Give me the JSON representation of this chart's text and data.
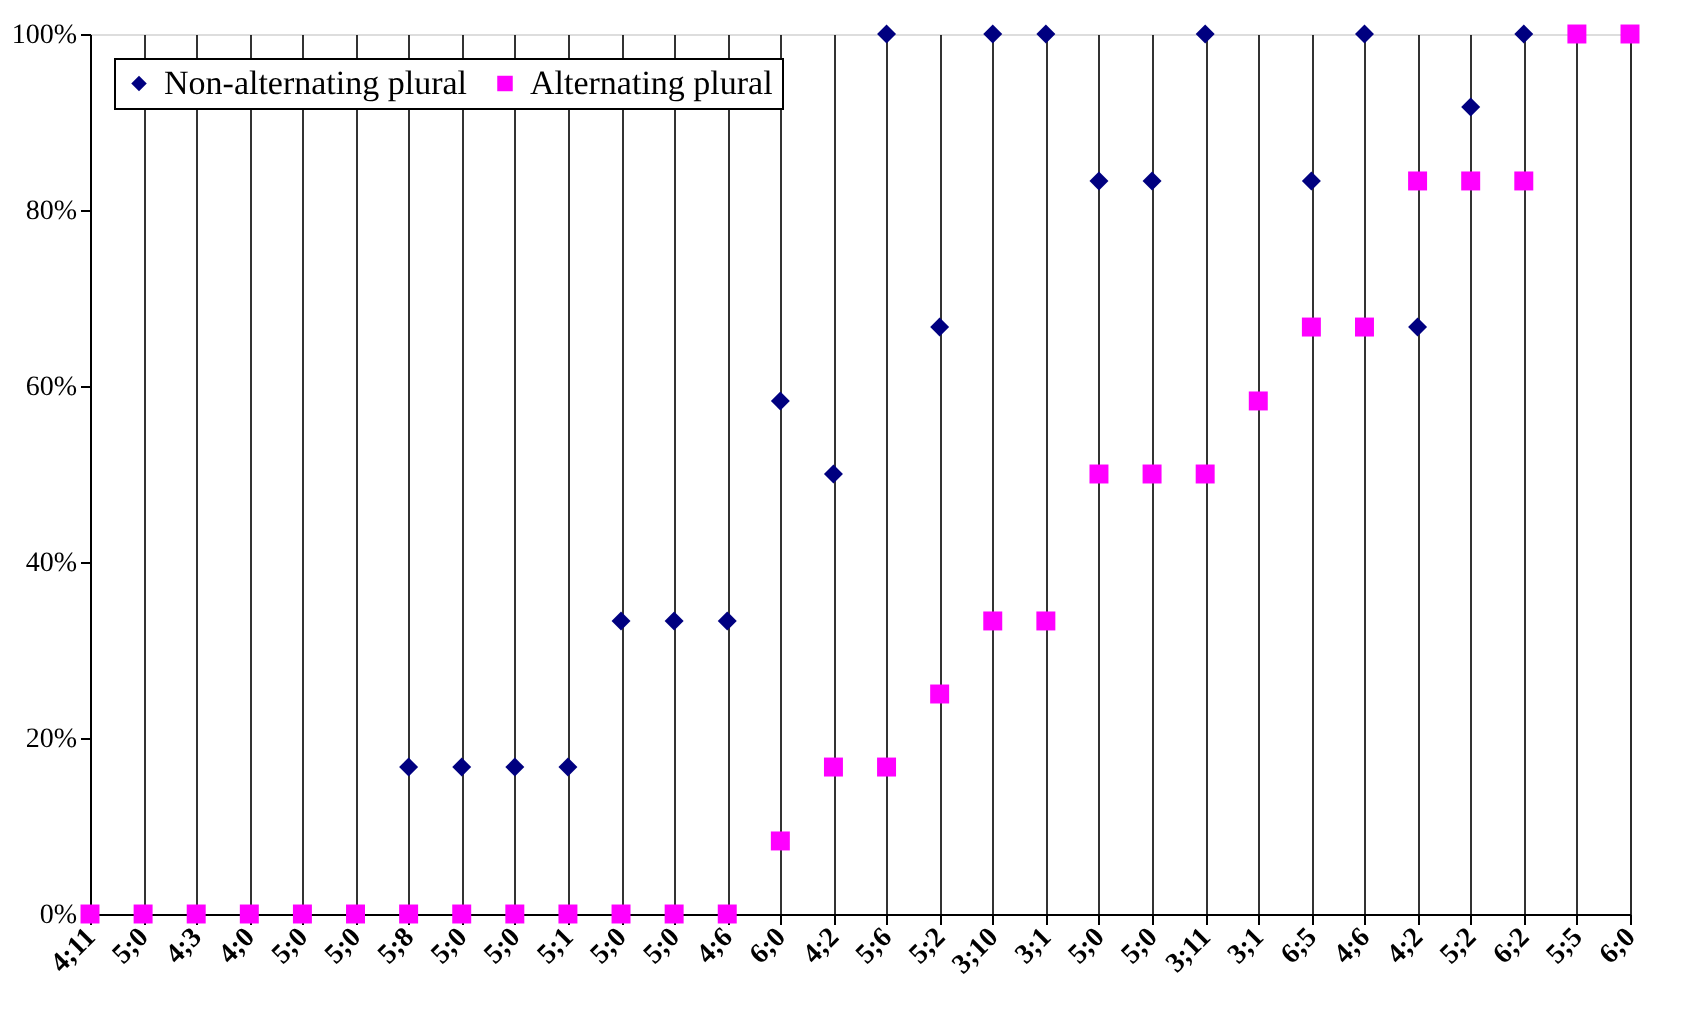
{
  "chart_data": {
    "type": "scatter",
    "categories": [
      "4;11",
      "5;0",
      "4;3",
      "4;0",
      "5;0",
      "5;0",
      "5;8",
      "5;0",
      "5;0",
      "5;1",
      "5;0",
      "5;0",
      "4;6",
      "6;0",
      "4;2",
      "5;6",
      "5;2",
      "3;10",
      "3;1",
      "5;0",
      "5;0",
      "3;11",
      "3;1",
      "6;5",
      "4;6",
      "4;2",
      "5;2",
      "6;2",
      "5;5",
      "6;0"
    ],
    "series": [
      {
        "name": "Non-alternating plural",
        "color": "#000080",
        "marker": "diamond",
        "values": [
          null,
          null,
          null,
          null,
          null,
          null,
          16.7,
          16.7,
          16.7,
          16.7,
          33.3,
          33.3,
          33.3,
          58.3,
          50,
          100,
          66.7,
          100,
          100,
          83.3,
          83.3,
          100,
          null,
          83.3,
          100,
          66.7,
          91.7,
          100,
          null,
          null
        ]
      },
      {
        "name": "Alternating plural",
        "color": "#ff00ff",
        "marker": "square",
        "values": [
          0,
          0,
          0,
          0,
          0,
          0,
          0,
          0,
          0,
          0,
          0,
          0,
          0,
          8.3,
          16.7,
          16.7,
          25,
          33.3,
          33.3,
          50,
          50,
          50,
          58.3,
          66.7,
          66.7,
          83.3,
          83.3,
          83.3,
          100,
          100
        ]
      }
    ],
    "ylim": [
      0,
      100
    ],
    "yticks": [
      {
        "value": 0,
        "label": "0%"
      },
      {
        "value": 20,
        "label": "20%"
      },
      {
        "value": 40,
        "label": "40%"
      },
      {
        "value": 60,
        "label": "60%"
      },
      {
        "value": 80,
        "label": "80%"
      },
      {
        "value": 100,
        "label": "100%"
      }
    ],
    "grid": "x",
    "legend": "top left"
  }
}
